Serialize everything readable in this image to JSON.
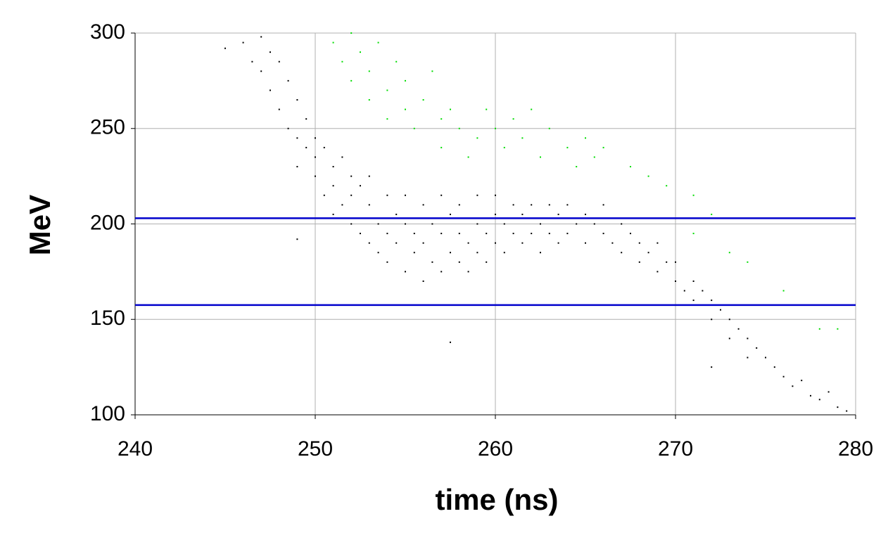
{
  "chart_data": {
    "type": "scatter",
    "x_label": "time (ns)",
    "y_label": "MeV",
    "xlim": [
      240,
      280
    ],
    "xticks": [
      240,
      250,
      260,
      270,
      280
    ],
    "ylim": [
      100,
      300
    ],
    "yticks": [
      100,
      150,
      200,
      250,
      300
    ],
    "grid": true,
    "series": [
      {
        "color": "#000000",
        "x": [
          246.0,
          246.5,
          247.0,
          247.0,
          247.5,
          247.5,
          248.0,
          248.0,
          248.5,
          248.5,
          249.0,
          249.0,
          249.0,
          249.5,
          249.5,
          250.0,
          250.0,
          250.0,
          250.5,
          250.5,
          251.0,
          251.0,
          251.0,
          251.5,
          251.5,
          252.0,
          252.0,
          252.0,
          252.5,
          252.5,
          253.0,
          253.0,
          253.0,
          253.5,
          253.5,
          254.0,
          254.0,
          254.0,
          254.5,
          254.5,
          255.0,
          255.0,
          255.0,
          255.5,
          255.5,
          256.0,
          256.0,
          256.0,
          256.5,
          256.5,
          257.0,
          257.0,
          257.0,
          257.5,
          257.5,
          258.0,
          258.0,
          258.0,
          258.5,
          258.5,
          259.0,
          259.0,
          259.0,
          259.5,
          259.5,
          260.0,
          260.0,
          260.0,
          260.5,
          260.5,
          261.0,
          261.0,
          261.5,
          261.5,
          262.0,
          262.0,
          262.5,
          262.5,
          263.0,
          263.0,
          263.5,
          263.5,
          264.0,
          264.0,
          264.5,
          265.0,
          265.0,
          265.5,
          266.0,
          266.0,
          266.5,
          267.0,
          267.0,
          267.5,
          268.0,
          268.0,
          268.5,
          269.0,
          269.0,
          269.5,
          270.0,
          270.0,
          270.5,
          271.0,
          271.0,
          271.5,
          272.0,
          272.0,
          272.5,
          273.0,
          273.0,
          273.5,
          274.0,
          274.0,
          274.5,
          275.0,
          275.5,
          276.0,
          276.5,
          277.0,
          277.5,
          278.0,
          278.5,
          279.0,
          279.5,
          257.5,
          245.0,
          249.0,
          272.0
        ],
        "y": [
          295,
          285,
          298,
          280,
          270,
          290,
          260,
          285,
          250,
          275,
          245,
          265,
          230,
          240,
          255,
          225,
          245,
          235,
          215,
          240,
          220,
          230,
          205,
          210,
          235,
          200,
          225,
          215,
          195,
          220,
          190,
          210,
          225,
          200,
          185,
          195,
          215,
          180,
          205,
          190,
          175,
          200,
          215,
          185,
          195,
          170,
          190,
          210,
          180,
          200,
          175,
          195,
          215,
          185,
          205,
          180,
          195,
          210,
          190,
          175,
          185,
          200,
          215,
          195,
          180,
          190,
          205,
          215,
          185,
          200,
          195,
          210,
          190,
          205,
          195,
          210,
          185,
          200,
          195,
          210,
          190,
          205,
          195,
          210,
          200,
          190,
          205,
          200,
          195,
          210,
          190,
          200,
          185,
          195,
          190,
          180,
          185,
          175,
          190,
          180,
          170,
          180,
          165,
          170,
          160,
          165,
          160,
          150,
          155,
          150,
          140,
          145,
          140,
          130,
          135,
          130,
          125,
          120,
          115,
          118,
          110,
          108,
          112,
          104,
          102,
          138,
          292,
          192,
          125
        ]
      },
      {
        "color": "#00dd00",
        "x": [
          251,
          251.5,
          252,
          252,
          252.5,
          253,
          253,
          253.5,
          254,
          254,
          254.5,
          255,
          255,
          255.5,
          256,
          256.5,
          257,
          257,
          257.5,
          258,
          258.5,
          259,
          259.5,
          260,
          260.5,
          261,
          261.5,
          262,
          262.5,
          263,
          264,
          264.5,
          265,
          265.5,
          266,
          267.5,
          268.5,
          269.5,
          271,
          271,
          272,
          273,
          274,
          276,
          278,
          279
        ],
        "y": [
          295,
          285,
          300,
          275,
          290,
          280,
          265,
          295,
          270,
          255,
          285,
          260,
          275,
          250,
          265,
          280,
          255,
          240,
          260,
          250,
          235,
          245,
          260,
          250,
          240,
          255,
          245,
          260,
          235,
          250,
          240,
          230,
          245,
          235,
          240,
          230,
          225,
          220,
          215,
          195,
          205,
          185,
          180,
          165,
          145,
          145
        ]
      }
    ],
    "hlines": [
      {
        "value": 203,
        "color": "#0000cc"
      },
      {
        "value": 157.5,
        "color": "#0000cc"
      }
    ]
  }
}
